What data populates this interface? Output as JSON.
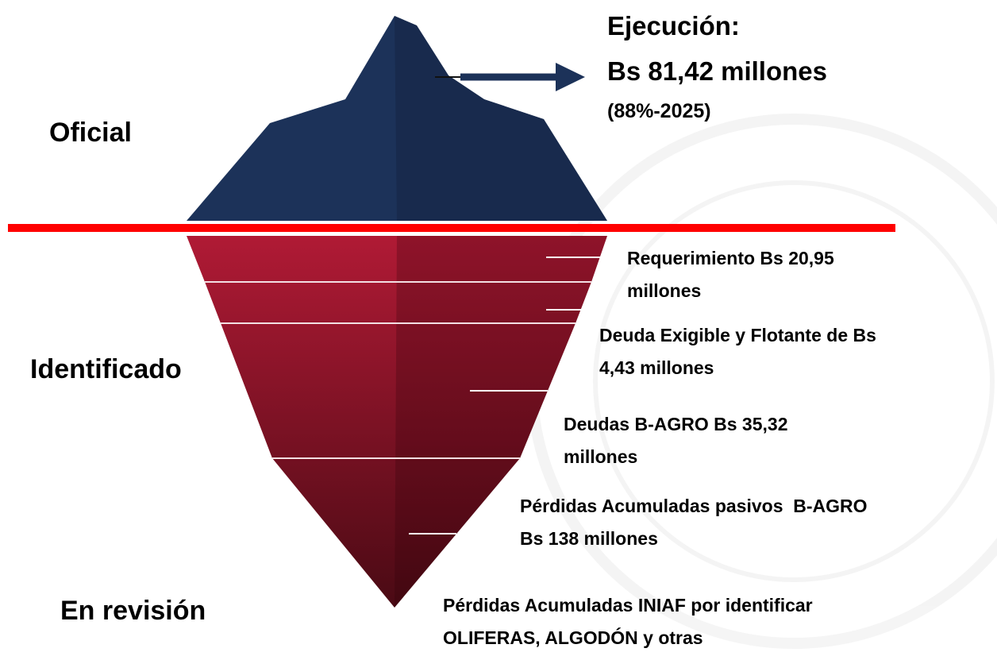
{
  "levels": [
    "Oficial",
    "Identificado",
    "En revisión"
  ],
  "execution": {
    "lines": [
      "Ejecución:",
      "Bs 81,42 millones",
      "(88%-2025)"
    ]
  },
  "items": [
    {
      "lines": [
        "Requerimiento Bs 20,95",
        "millones"
      ]
    },
    {
      "lines": [
        "Deuda Exigible y Flotante de Bs",
        "4,43 millones"
      ]
    },
    {
      "lines": [
        "Deudas B-AGRO Bs 35,32",
        "millones"
      ]
    },
    {
      "lines": [
        "Pérdidas Acumuladas pasivos  B-AGRO",
        "Bs 138 millones"
      ]
    },
    {
      "lines": [
        "Pérdidas Acumuladas INIAF por identificar",
        "OLIFERAS, ALGODÓN y otras"
      ]
    }
  ]
}
